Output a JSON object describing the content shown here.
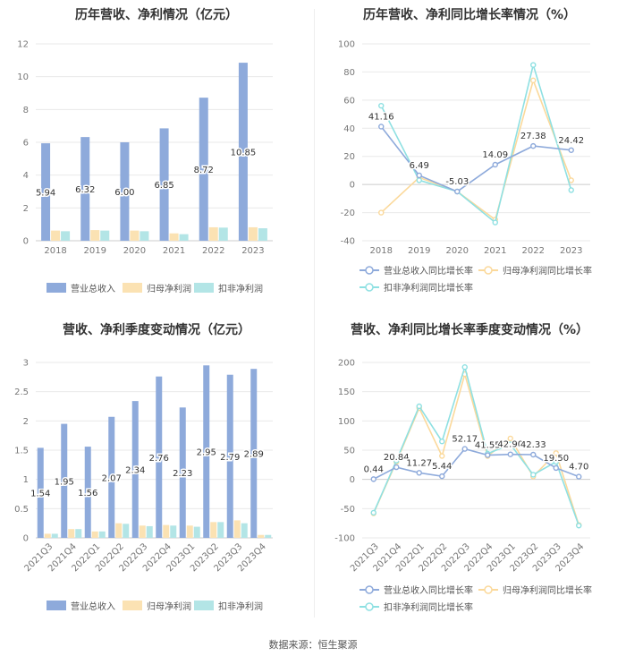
{
  "source": "数据来源：恒生聚源",
  "colors": {
    "revenue": "#8eaadb",
    "profit": "#fbe2b3",
    "deducted": "#b3e5e6",
    "rev_line": "#8eaadb",
    "profit_line": "#fbd99b",
    "ded_line": "#8ee0e2",
    "grid": "#e9e9e9",
    "axis": "#cccccc"
  },
  "chart_data": [
    {
      "type": "bar",
      "title": "历年营收、净利情况（亿元）",
      "categories": [
        "2018",
        "2019",
        "2020",
        "2021",
        "2022",
        "2023"
      ],
      "ylim": [
        0,
        12
      ],
      "yticks": [
        0,
        2,
        4,
        6,
        8,
        10,
        12
      ],
      "series": [
        {
          "name": "营业总收入",
          "values": [
            5.94,
            6.32,
            6.0,
            6.85,
            8.72,
            10.85
          ],
          "labels": [
            "5.94",
            "6.32",
            "6.00",
            "6.85",
            "8.72",
            "10.85"
          ]
        },
        {
          "name": "归母净利润",
          "values": [
            0.62,
            0.65,
            0.62,
            0.45,
            0.82,
            0.82
          ]
        },
        {
          "name": "扣非净利润",
          "values": [
            0.58,
            0.62,
            0.58,
            0.4,
            0.8,
            0.76
          ]
        }
      ]
    },
    {
      "type": "line",
      "title": "历年营收、净利同比增长率情况（%）",
      "categories": [
        "2018",
        "2019",
        "2020",
        "2021",
        "2022",
        "2023"
      ],
      "ylim": [
        -40,
        100
      ],
      "yticks": [
        -40,
        -20,
        0,
        20,
        40,
        60,
        80,
        100
      ],
      "series": [
        {
          "name": "营业总收入同比增长率",
          "values": [
            41.16,
            6.49,
            -5.03,
            14.09,
            27.38,
            24.42
          ],
          "labels": [
            "41.16",
            "6.49",
            "-5.03",
            "14.09",
            "27.38",
            "24.42"
          ]
        },
        {
          "name": "归母净利润同比增长率",
          "values": [
            -20,
            5,
            -5,
            -25,
            74,
            3
          ]
        },
        {
          "name": "扣非净利润同比增长率",
          "values": [
            56,
            3,
            -5,
            -27,
            85,
            -4
          ]
        }
      ]
    },
    {
      "type": "bar",
      "title": "营收、净利季度变动情况（亿元）",
      "categories": [
        "2021Q3",
        "2021Q4",
        "2022Q1",
        "2022Q2",
        "2022Q3",
        "2022Q4",
        "2023Q1",
        "2023Q2",
        "2023Q3",
        "2023Q4"
      ],
      "ylim": [
        0,
        3
      ],
      "yticks": [
        0,
        0.5,
        1,
        1.5,
        2,
        2.5,
        3
      ],
      "ytick_labels": [
        "0",
        "0.5",
        "1",
        "1.5",
        "2",
        "2.5",
        "3"
      ],
      "series": [
        {
          "name": "营业总收入",
          "values": [
            1.54,
            1.95,
            1.56,
            2.07,
            2.34,
            2.76,
            2.23,
            2.95,
            2.79,
            2.89
          ],
          "labels": [
            "1.54",
            "1.95",
            "1.56",
            "2.07",
            "2.34",
            "2.76",
            "2.23",
            "2.95",
            "2.79",
            "2.89"
          ]
        },
        {
          "name": "归母净利润",
          "values": [
            0.07,
            0.15,
            0.11,
            0.25,
            0.21,
            0.22,
            0.21,
            0.27,
            0.3,
            0.05
          ]
        },
        {
          "name": "扣非净利润",
          "values": [
            0.07,
            0.15,
            0.11,
            0.24,
            0.2,
            0.21,
            0.19,
            0.27,
            0.25,
            0.05
          ]
        }
      ]
    },
    {
      "type": "line",
      "title": "营收、净利同比增长率季度变动情况（%）",
      "categories": [
        "2021Q3",
        "2021Q4",
        "2022Q1",
        "2022Q2",
        "2022Q3",
        "2022Q4",
        "2023Q1",
        "2023Q2",
        "2023Q3",
        "2023Q4"
      ],
      "ylim": [
        -100,
        200
      ],
      "yticks": [
        -100,
        -50,
        0,
        50,
        100,
        150,
        200
      ],
      "series": [
        {
          "name": "营业总收入同比增长率",
          "values": [
            0.44,
            20.84,
            11.27,
            5.44,
            52.17,
            41.55,
            42.9,
            42.33,
            19.5,
            4.7
          ],
          "labels": [
            "0.44",
            "20.84",
            "11.27",
            "5.44",
            "52.17",
            "41.55",
            "42.90",
            "42.33",
            "19.50",
            "4.70"
          ]
        },
        {
          "name": "归母净利润同比增长率",
          "values": [
            -58,
            30,
            122,
            40,
            180,
            40,
            70,
            5,
            45,
            -78
          ]
        },
        {
          "name": "扣非净利润同比增长率",
          "values": [
            -57,
            32,
            125,
            65,
            192,
            44,
            60,
            8,
            30,
            -79
          ]
        }
      ]
    }
  ]
}
